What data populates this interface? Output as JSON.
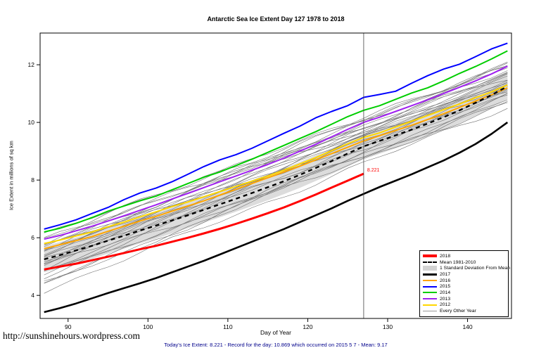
{
  "page": {
    "url_text": "http://sunshinehours.wordpress.com",
    "caption": "Today's Ice Extent: 8.221  - Record for the day: 10.869 which occurred on 2015 5 7  - Mean: 9.17",
    "caption_color": "#00008B"
  },
  "chart_data": {
    "type": "line",
    "title": "Antarctic Sea Ice Extent Day 127 1978 to 2018",
    "xlabel": "Day of Year",
    "ylabel": "Ice Extent in millions of sq  km",
    "xlim": [
      86.5,
      145.5
    ],
    "ylim": [
      3.2,
      13.1
    ],
    "xticks": [
      90,
      100,
      110,
      120,
      130,
      140
    ],
    "yticks": [
      4,
      6,
      8,
      10,
      12
    ],
    "grid": false,
    "legend_position": "bottom-right",
    "vline_x": 127,
    "vline_color": "#444444",
    "annotation": {
      "x": 127,
      "y": 8.221,
      "text": "8.221",
      "color": "#FF0000"
    },
    "days": [
      87,
      89,
      91,
      93,
      95,
      97,
      99,
      101,
      103,
      105,
      107,
      109,
      111,
      113,
      115,
      117,
      119,
      121,
      123,
      125,
      127,
      129,
      131,
      133,
      135,
      137,
      139,
      141,
      143,
      145
    ],
    "std_band": {
      "label": "1 Standard Deviation From Mean",
      "color": "#DCDCDC",
      "halfwidth": 0.45,
      "around": "Mean 1981-2010"
    },
    "series": [
      {
        "name": "2016",
        "color": "#FFA500",
        "width": 2,
        "values": [
          5.62,
          5.76,
          5.9,
          6.04,
          6.22,
          6.4,
          6.58,
          6.74,
          6.92,
          7.1,
          7.28,
          7.48,
          7.68,
          7.88,
          8.08,
          8.28,
          8.48,
          8.7,
          8.92,
          9.14,
          9.36,
          9.54,
          9.72,
          9.9,
          10.1,
          10.3,
          10.52,
          10.74,
          10.96,
          11.2
        ]
      },
      {
        "name": "2012",
        "color": "#FFD700",
        "width": 2,
        "values": [
          5.8,
          5.92,
          6.06,
          6.2,
          6.38,
          6.54,
          6.72,
          6.9,
          7.08,
          7.24,
          7.42,
          7.6,
          7.78,
          7.96,
          8.14,
          8.34,
          8.56,
          8.78,
          9.02,
          9.26,
          9.48,
          9.64,
          9.84,
          10.04,
          10.24,
          10.44,
          10.64,
          10.86,
          11.06,
          11.3
        ]
      },
      {
        "name": "2013",
        "color": "#A020F0",
        "width": 2,
        "values": [
          5.95,
          6.08,
          6.24,
          6.4,
          6.58,
          6.76,
          6.95,
          7.14,
          7.34,
          7.54,
          7.74,
          7.94,
          8.14,
          8.34,
          8.54,
          8.76,
          9.0,
          9.24,
          9.5,
          9.76,
          10.0,
          10.18,
          10.38,
          10.58,
          10.78,
          11.0,
          11.22,
          11.44,
          11.68,
          11.95
        ]
      },
      {
        "name": "2014",
        "color": "#00CD00",
        "width": 2,
        "values": [
          6.2,
          6.33,
          6.5,
          6.7,
          6.92,
          7.1,
          7.28,
          7.44,
          7.66,
          7.88,
          8.1,
          8.28,
          8.5,
          8.72,
          8.96,
          9.2,
          9.44,
          9.68,
          9.94,
          10.2,
          10.42,
          10.58,
          10.8,
          11.02,
          11.2,
          11.44,
          11.7,
          11.94,
          12.2,
          12.48
        ]
      },
      {
        "name": "2015",
        "color": "#0000FF",
        "width": 2,
        "values": [
          6.3,
          6.45,
          6.62,
          6.84,
          7.05,
          7.32,
          7.55,
          7.72,
          7.94,
          8.2,
          8.47,
          8.7,
          8.88,
          9.1,
          9.36,
          9.62,
          9.87,
          10.16,
          10.38,
          10.58,
          10.87,
          10.97,
          11.08,
          11.36,
          11.62,
          11.85,
          12.02,
          12.28,
          12.55,
          12.75
        ]
      },
      {
        "name": "Mean 1981-2010",
        "color": "#000000",
        "width": 2.4,
        "dash": "6,5",
        "values": [
          5.25,
          5.4,
          5.56,
          5.72,
          5.9,
          6.07,
          6.25,
          6.42,
          6.6,
          6.78,
          6.97,
          7.16,
          7.35,
          7.55,
          7.75,
          7.96,
          8.18,
          8.42,
          8.66,
          8.92,
          9.17,
          9.36,
          9.55,
          9.75,
          9.96,
          10.18,
          10.42,
          10.68,
          10.95,
          11.25
        ]
      },
      {
        "name": "2017",
        "color": "#000000",
        "width": 2.6,
        "values": [
          3.42,
          3.56,
          3.72,
          3.9,
          4.08,
          4.25,
          4.42,
          4.6,
          4.8,
          5.0,
          5.2,
          5.42,
          5.64,
          5.86,
          6.08,
          6.3,
          6.54,
          6.78,
          7.02,
          7.28,
          7.52,
          7.76,
          7.98,
          8.2,
          8.44,
          8.68,
          8.95,
          9.25,
          9.6,
          10.0
        ]
      },
      {
        "name": "2018",
        "color": "#FF0000",
        "width": 3,
        "values": [
          4.9,
          5.0,
          5.1,
          5.22,
          5.34,
          5.47,
          5.6,
          5.72,
          5.86,
          6.0,
          6.15,
          6.31,
          6.48,
          6.66,
          6.85,
          7.05,
          7.27,
          7.5,
          7.74,
          7.98,
          8.221
        ]
      }
    ],
    "other_years": {
      "label": "Every Other Year",
      "color": "#6F6F6F",
      "lines": [
        {
          "s": 4.15,
          "e": 10.55,
          "seed": 1
        },
        {
          "s": 4.35,
          "e": 10.9,
          "seed": 2
        },
        {
          "s": 4.5,
          "e": 11.0,
          "seed": 3
        },
        {
          "s": 4.62,
          "e": 10.8,
          "seed": 4
        },
        {
          "s": 4.72,
          "e": 11.3,
          "seed": 5
        },
        {
          "s": 4.8,
          "e": 10.65,
          "seed": 6
        },
        {
          "s": 4.88,
          "e": 11.1,
          "seed": 7
        },
        {
          "s": 4.95,
          "e": 11.5,
          "seed": 8
        },
        {
          "s": 5.02,
          "e": 10.95,
          "seed": 9
        },
        {
          "s": 5.08,
          "e": 11.6,
          "seed": 10
        },
        {
          "s": 5.15,
          "e": 11.2,
          "seed": 11
        },
        {
          "s": 5.2,
          "e": 11.75,
          "seed": 12
        },
        {
          "s": 5.26,
          "e": 11.05,
          "seed": 13
        },
        {
          "s": 5.32,
          "e": 11.4,
          "seed": 14
        },
        {
          "s": 5.38,
          "e": 11.9,
          "seed": 15
        },
        {
          "s": 5.44,
          "e": 11.15,
          "seed": 16
        },
        {
          "s": 5.5,
          "e": 11.6,
          "seed": 17
        },
        {
          "s": 5.55,
          "e": 12.0,
          "seed": 18
        },
        {
          "s": 5.6,
          "e": 11.35,
          "seed": 19
        },
        {
          "s": 5.66,
          "e": 11.7,
          "seed": 20
        },
        {
          "s": 5.72,
          "e": 12.05,
          "seed": 21
        },
        {
          "s": 5.78,
          "e": 11.5,
          "seed": 22
        },
        {
          "s": 5.85,
          "e": 11.85,
          "seed": 23
        },
        {
          "s": 5.92,
          "e": 11.65,
          "seed": 24
        },
        {
          "s": 6.0,
          "e": 12.0,
          "seed": 25
        },
        {
          "s": 4.42,
          "e": 10.7,
          "seed": 26
        },
        {
          "s": 5.1,
          "e": 11.45,
          "seed": 27
        },
        {
          "s": 6.08,
          "e": 11.95,
          "seed": 28
        }
      ]
    },
    "legend": [
      {
        "label": "2018",
        "color": "#FF0000",
        "style": "solid",
        "lw": 4
      },
      {
        "label": "Mean 1981-2010",
        "color": "#000000",
        "style": "dashed",
        "lw": 2
      },
      {
        "label": "1 Standard Deviation From Mean",
        "color": "#D3D3D3",
        "style": "band",
        "lw": 7
      },
      {
        "label": "2017",
        "color": "#000000",
        "style": "solid",
        "lw": 3
      },
      {
        "label": "2016",
        "color": "#FFA500",
        "style": "solid",
        "lw": 2
      },
      {
        "label": "2015",
        "color": "#0000FF",
        "style": "solid",
        "lw": 2
      },
      {
        "label": "2014",
        "color": "#00CD00",
        "style": "solid",
        "lw": 2
      },
      {
        "label": "2013",
        "color": "#A020F0",
        "style": "solid",
        "lw": 2
      },
      {
        "label": "2012",
        "color": "#FFD700",
        "style": "solid",
        "lw": 2
      },
      {
        "label": "Every Other Year",
        "color": "#999999",
        "style": "thin",
        "lw": 1
      }
    ]
  }
}
